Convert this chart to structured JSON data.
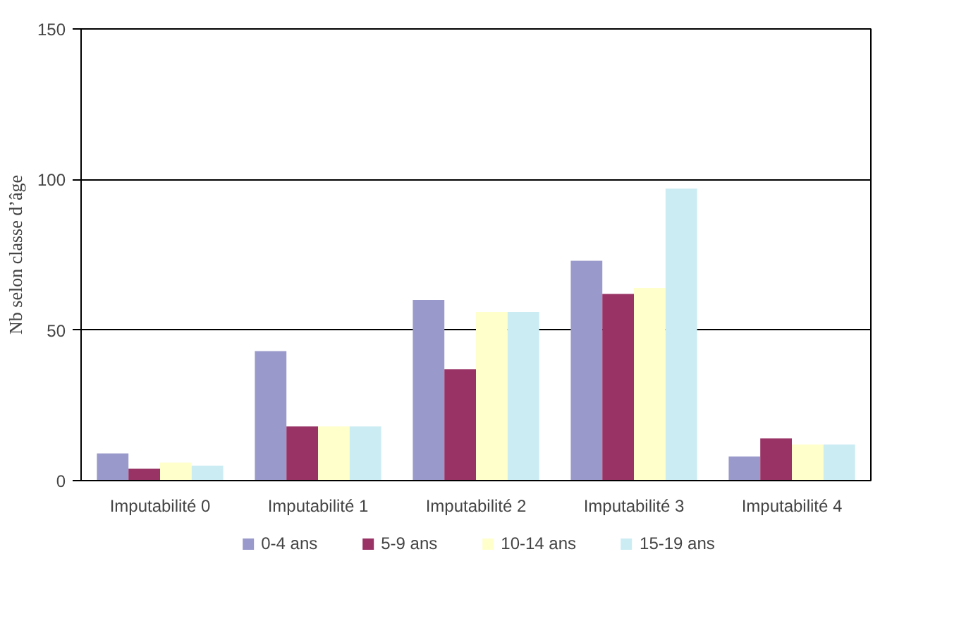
{
  "chart_data": {
    "type": "bar",
    "ylabel": "Nb selon classe d’âge",
    "categories": [
      "Imputabilité 0",
      "Imputabilité 1",
      "Imputabilité 2",
      "Imputabilité 3",
      "Imputabilité 4"
    ],
    "series": [
      {
        "name": "0-4 ans",
        "color": "#9999cc",
        "values": [
          9,
          43,
          60,
          73,
          8
        ]
      },
      {
        "name": "5-9 ans",
        "color": "#993366",
        "values": [
          4,
          18,
          37,
          62,
          14
        ]
      },
      {
        "name": "10-14 ans",
        "color": "#ffffcc",
        "values": [
          6,
          18,
          56,
          64,
          12
        ]
      },
      {
        "name": "15-19 ans",
        "color": "#ccecf4",
        "values": [
          5,
          18,
          56,
          97,
          12
        ]
      }
    ],
    "ylim": [
      0,
      150
    ],
    "yticks": [
      0,
      50,
      100,
      150
    ],
    "grid": "y",
    "legend": "bottom"
  }
}
